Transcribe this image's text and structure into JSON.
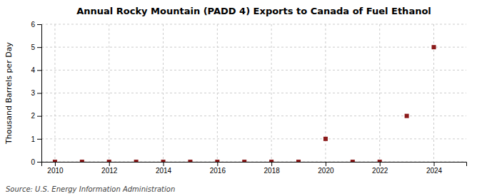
{
  "chart_data": {
    "type": "scatter",
    "title": "Annual Rocky Mountain (PADD 4) Exports to Canada of Fuel Ethanol",
    "y_label": "Thousand Barrels per Day",
    "annotation": "Source: U.S. Energy Information Administration",
    "x": [
      2010,
      2011,
      2012,
      2013,
      2014,
      2015,
      2016,
      2017,
      2018,
      2019,
      2020,
      2021,
      2022,
      2023,
      2024
    ],
    "values": [
      0,
      0,
      0,
      0,
      0,
      0,
      0,
      0,
      0,
      0,
      1,
      0,
      0,
      2,
      5
    ],
    "color": "#8B1A1A",
    "marker": "square",
    "xlim": [
      2009.5,
      2025.2
    ],
    "ylim": [
      0,
      6
    ],
    "xticks": [
      2010,
      2012,
      2014,
      2016,
      2018,
      2020,
      2022,
      2024
    ],
    "yticks": [
      0,
      1,
      2,
      3,
      4,
      5,
      6
    ],
    "grid": true
  }
}
